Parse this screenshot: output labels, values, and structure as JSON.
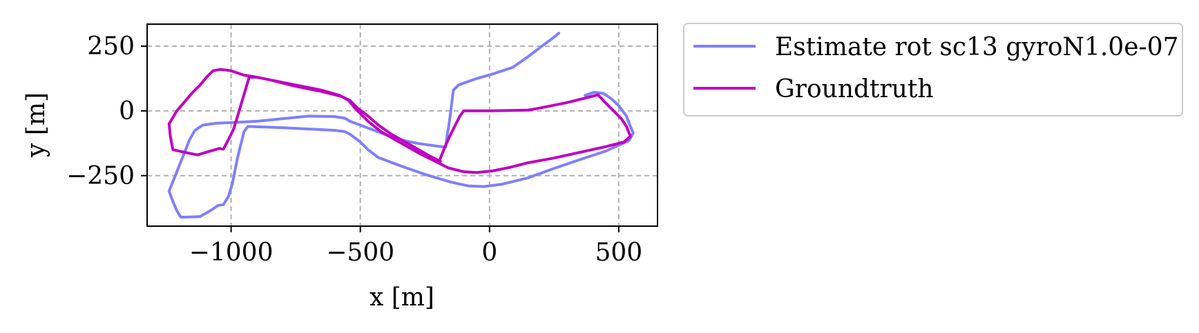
{
  "chart_data": {
    "type": "line",
    "title": "",
    "xlabel": "x [m]",
    "ylabel": "y [m]",
    "xlim": [
      -1325,
      650
    ],
    "ylim": [
      -445,
      335
    ],
    "xticks": [
      -1000,
      -500,
      0,
      500
    ],
    "xtick_labels": [
      "−1000",
      "−500",
      "0",
      "500"
    ],
    "yticks": [
      250,
      0,
      -250
    ],
    "ytick_labels": [
      "250",
      "0",
      "−250"
    ],
    "grid": true,
    "legend_position": "outside-upper-right",
    "series": [
      {
        "name": "Estimate rot sc13 gyroN1.0e-07",
        "color": "#7f7fff",
        "points": [
          [
            268,
            300
          ],
          [
            250,
            285
          ],
          [
            200,
            248
          ],
          [
            150,
            210
          ],
          [
            90,
            168
          ],
          [
            20,
            145
          ],
          [
            -50,
            125
          ],
          [
            -120,
            100
          ],
          [
            -140,
            80
          ],
          [
            -145,
            40
          ],
          [
            -150,
            0
          ],
          [
            -158,
            -60
          ],
          [
            -165,
            -100
          ],
          [
            -170,
            -140
          ],
          [
            -210,
            -135
          ],
          [
            -280,
            -125
          ],
          [
            -330,
            -115
          ],
          [
            -380,
            -100
          ],
          [
            -420,
            -85
          ],
          [
            -460,
            -70
          ],
          [
            -500,
            -55
          ],
          [
            -540,
            -40
          ],
          [
            -560,
            -28
          ],
          [
            -600,
            -22
          ],
          [
            -700,
            -20
          ],
          [
            -800,
            -30
          ],
          [
            -900,
            -40
          ],
          [
            -1000,
            -45
          ],
          [
            -1060,
            -48
          ],
          [
            -1110,
            -55
          ],
          [
            -1140,
            -75
          ],
          [
            -1160,
            -110
          ],
          [
            -1180,
            -160
          ],
          [
            -1200,
            -210
          ],
          [
            -1220,
            -260
          ],
          [
            -1240,
            -310
          ],
          [
            -1225,
            -350
          ],
          [
            -1210,
            -385
          ],
          [
            -1195,
            -410
          ],
          [
            -1170,
            -410
          ],
          [
            -1120,
            -408
          ],
          [
            -1080,
            -385
          ],
          [
            -1050,
            -365
          ],
          [
            -1030,
            -362
          ],
          [
            -1010,
            -330
          ],
          [
            -995,
            -280
          ],
          [
            -985,
            -230
          ],
          [
            -975,
            -180
          ],
          [
            -960,
            -120
          ],
          [
            -950,
            -80
          ],
          [
            -935,
            -60
          ],
          [
            -880,
            -62
          ],
          [
            -800,
            -65
          ],
          [
            -700,
            -70
          ],
          [
            -600,
            -75
          ],
          [
            -560,
            -80
          ],
          [
            -540,
            -90
          ],
          [
            -500,
            -120
          ],
          [
            -470,
            -150
          ],
          [
            -430,
            -180
          ],
          [
            -350,
            -210
          ],
          [
            -250,
            -245
          ],
          [
            -150,
            -275
          ],
          [
            -80,
            -290
          ],
          [
            -20,
            -292
          ],
          [
            50,
            -283
          ],
          [
            150,
            -258
          ],
          [
            250,
            -222
          ],
          [
            350,
            -188
          ],
          [
            450,
            -155
          ],
          [
            540,
            -115
          ],
          [
            556,
            -85
          ],
          [
            545,
            -60
          ],
          [
            530,
            -20
          ],
          [
            500,
            20
          ],
          [
            470,
            48
          ],
          [
            440,
            68
          ],
          [
            405,
            72
          ],
          [
            370,
            60
          ]
        ]
      },
      {
        "name": "Groundtruth",
        "color": "#bf00bf",
        "points": [
          [
            -190,
            -195
          ],
          [
            -230,
            -175
          ],
          [
            -300,
            -135
          ],
          [
            -380,
            -90
          ],
          [
            -430,
            -55
          ],
          [
            -470,
            -20
          ],
          [
            -510,
            10
          ],
          [
            -540,
            40
          ],
          [
            -570,
            55
          ],
          [
            -650,
            75
          ],
          [
            -750,
            95
          ],
          [
            -850,
            120
          ],
          [
            -900,
            130
          ],
          [
            -950,
            138
          ],
          [
            -1000,
            155
          ],
          [
            -1040,
            160
          ],
          [
            -1070,
            155
          ],
          [
            -1095,
            130
          ],
          [
            -1120,
            100
          ],
          [
            -1150,
            70
          ],
          [
            -1180,
            35
          ],
          [
            -1210,
            0
          ],
          [
            -1240,
            -50
          ],
          [
            -1235,
            -100
          ],
          [
            -1225,
            -150
          ],
          [
            -1170,
            -162
          ],
          [
            -1130,
            -170
          ],
          [
            -1080,
            -155
          ],
          [
            -1045,
            -145
          ],
          [
            -1030,
            -148
          ],
          [
            -1010,
            -110
          ],
          [
            -990,
            -70
          ],
          [
            -975,
            -20
          ],
          [
            -960,
            30
          ],
          [
            -945,
            80
          ],
          [
            -930,
            130
          ],
          [
            -900,
            130
          ],
          [
            -850,
            120
          ],
          [
            -750,
            100
          ],
          [
            -650,
            80
          ],
          [
            -580,
            60
          ],
          [
            -545,
            40
          ],
          [
            -520,
            10
          ],
          [
            -470,
            -40
          ],
          [
            -420,
            -80
          ],
          [
            -350,
            -120
          ],
          [
            -270,
            -165
          ],
          [
            -190,
            -205
          ],
          [
            -160,
            -220
          ],
          [
            -100,
            -235
          ],
          [
            -50,
            -238
          ],
          [
            10,
            -232
          ],
          [
            80,
            -218
          ],
          [
            150,
            -200
          ],
          [
            250,
            -182
          ],
          [
            350,
            -160
          ],
          [
            450,
            -138
          ],
          [
            520,
            -120
          ],
          [
            545,
            -98
          ],
          [
            530,
            -60
          ],
          [
            510,
            -30
          ],
          [
            480,
            0
          ],
          [
            450,
            30
          ],
          [
            420,
            62
          ],
          [
            380,
            52
          ],
          [
            300,
            32
          ],
          [
            200,
            12
          ],
          [
            150,
            3
          ],
          [
            0,
            0
          ],
          [
            -100,
            0
          ],
          [
            -115,
            -20
          ],
          [
            -135,
            -60
          ],
          [
            -155,
            -100
          ],
          [
            -175,
            -145
          ],
          [
            -193,
            -190
          ]
        ]
      }
    ]
  }
}
